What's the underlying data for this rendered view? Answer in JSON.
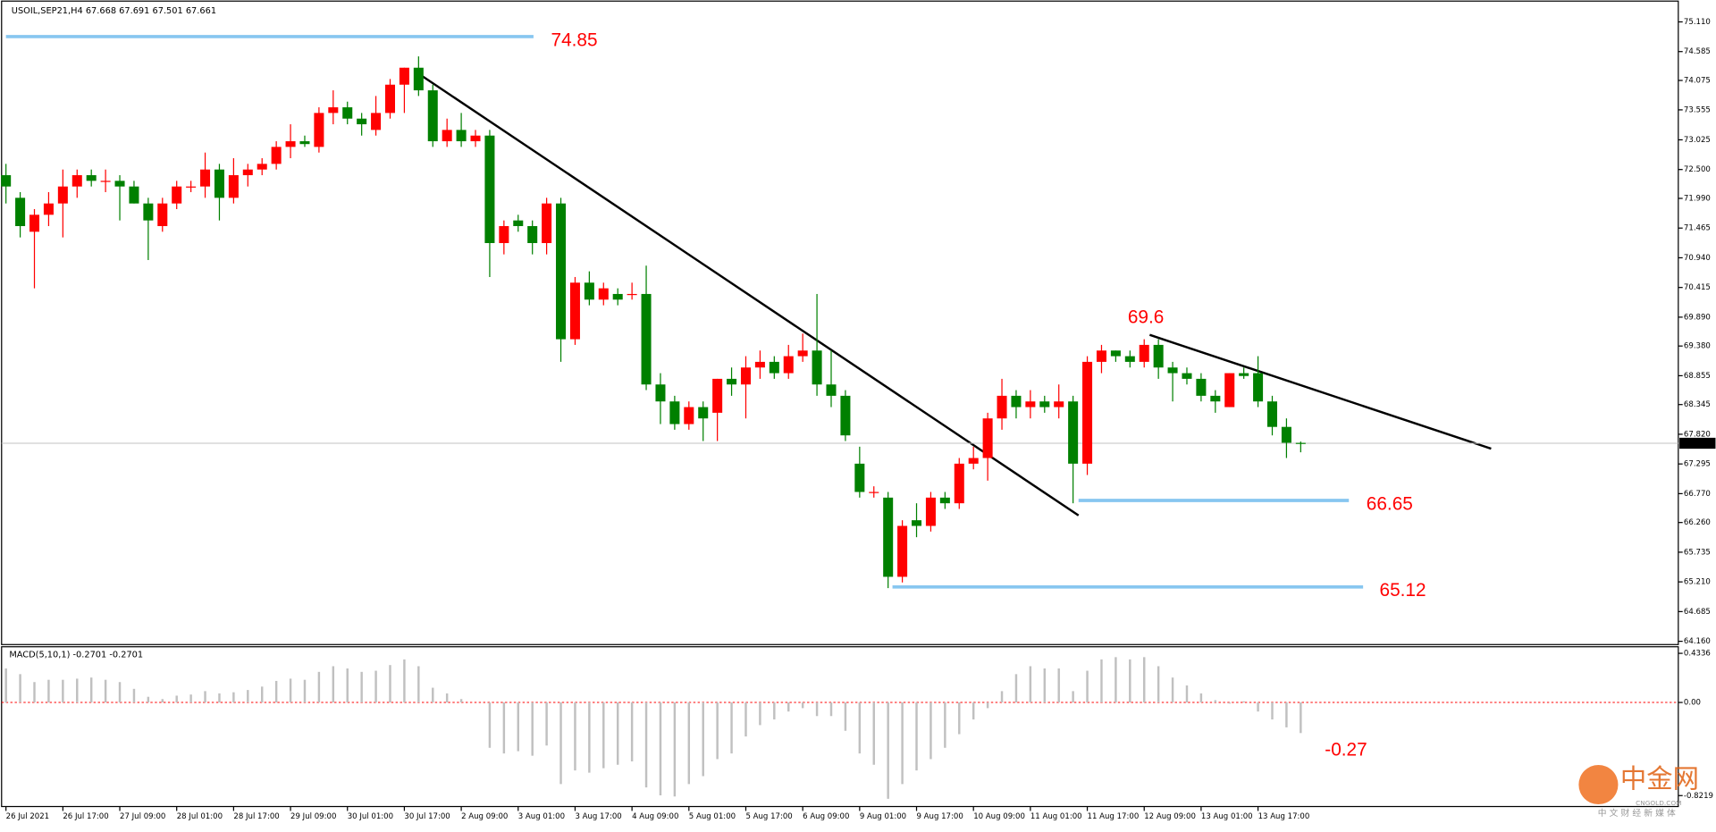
{
  "header": "USOIL,SEP21,H4  67.668 67.691 67.501 67.661",
  "watermark": {
    "brand": "中金网",
    "site": "CNGOLD.COM",
    "slogan": "中 文 财 经 新 媒 体"
  },
  "chart_data": [
    {
      "type": "candlestick",
      "up_color": "#ff0000",
      "down_color": "#008000",
      "categories": [
        "26 Jul 2021",
        null,
        null,
        null,
        "26 Jul 17:00",
        null,
        null,
        null,
        "27 Jul 09:00",
        null,
        null,
        null,
        "28 Jul 01:00",
        null,
        null,
        null,
        "28 Jul 17:00",
        null,
        null,
        null,
        "29 Jul 09:00",
        null,
        null,
        null,
        "30 Jul 01:00",
        null,
        null,
        null,
        "30 Jul 17:00",
        null,
        null,
        null,
        "2 Aug 09:00",
        null,
        null,
        null,
        "3 Aug 01:00",
        null,
        null,
        null,
        "3 Aug 17:00",
        null,
        null,
        null,
        "4 Aug 09:00",
        null,
        null,
        null,
        "5 Aug 01:00",
        null,
        null,
        null,
        "5 Aug 17:00",
        null,
        null,
        null,
        "6 Aug 09:00",
        null,
        null,
        null,
        "9 Aug 01:00",
        null,
        null,
        null,
        "9 Aug 17:00",
        null,
        null,
        null,
        "10 Aug 09:00",
        null,
        null,
        null,
        "11 Aug 01:00",
        null,
        null,
        null,
        "11 Aug 17:00",
        null,
        null,
        null,
        "12 Aug 09:00",
        null,
        null,
        null,
        "13 Aug 01:00",
        null,
        null,
        null,
        "13 Aug 17:00",
        null,
        null,
        null
      ],
      "open": [
        72.4,
        72.0,
        71.4,
        71.7,
        71.9,
        72.2,
        72.4,
        72.3,
        72.3,
        72.2,
        71.9,
        71.5,
        71.9,
        72.2,
        72.2,
        72.5,
        72.0,
        72.4,
        72.5,
        72.6,
        72.9,
        73.0,
        72.9,
        73.5,
        73.6,
        73.4,
        73.2,
        73.5,
        74.0,
        74.3,
        73.9,
        73.0,
        73.2,
        73.0,
        73.1,
        71.2,
        71.6,
        71.5,
        71.2,
        71.9,
        69.5,
        70.5,
        70.2,
        70.3,
        70.3,
        70.3,
        68.7,
        68.4,
        68.0,
        68.3,
        68.2,
        68.8,
        68.7,
        69.0,
        69.1,
        68.9,
        69.2,
        69.3,
        68.7,
        68.5,
        67.3,
        66.8,
        66.7,
        65.3,
        66.3,
        66.2,
        66.7,
        66.6,
        67.3,
        67.4,
        68.1,
        68.5,
        68.3,
        68.4,
        68.3,
        68.4,
        67.3,
        69.1,
        69.3,
        69.2,
        69.1,
        69.4,
        69.0,
        68.9,
        68.8,
        68.5,
        68.3,
        68.9,
        68.9,
        68.4,
        67.95,
        67.668
      ],
      "high": [
        72.6,
        72.1,
        71.8,
        72.1,
        72.5,
        72.5,
        72.5,
        72.5,
        72.4,
        72.3,
        72.0,
        72.0,
        72.3,
        72.3,
        72.8,
        72.6,
        72.7,
        72.6,
        72.7,
        73.0,
        73.3,
        73.1,
        73.6,
        73.9,
        73.7,
        73.5,
        73.8,
        74.1,
        74.3,
        74.5,
        74.0,
        73.4,
        73.5,
        73.2,
        73.2,
        71.6,
        71.7,
        71.6,
        72.0,
        72.0,
        70.6,
        70.7,
        70.5,
        70.4,
        70.5,
        70.8,
        68.9,
        68.5,
        68.4,
        68.4,
        68.8,
        69.0,
        69.2,
        69.3,
        69.2,
        69.4,
        69.6,
        70.3,
        69.3,
        68.6,
        67.6,
        66.9,
        66.8,
        66.3,
        66.6,
        66.8,
        66.8,
        67.4,
        67.6,
        68.2,
        68.8,
        68.6,
        68.6,
        68.5,
        68.7,
        68.5,
        69.2,
        69.4,
        69.3,
        69.3,
        69.5,
        69.5,
        69.1,
        69.0,
        68.9,
        68.6,
        68.9,
        69.0,
        69.2,
        68.5,
        68.1,
        67.691
      ],
      "low": [
        71.9,
        71.3,
        70.4,
        71.5,
        71.3,
        72.0,
        72.2,
        72.1,
        71.6,
        71.9,
        70.9,
        71.4,
        71.8,
        72.1,
        72.0,
        71.6,
        71.9,
        72.2,
        72.4,
        72.5,
        72.7,
        72.9,
        72.8,
        73.3,
        73.3,
        73.1,
        73.1,
        73.4,
        73.5,
        73.8,
        72.9,
        72.9,
        72.9,
        72.9,
        70.6,
        71.0,
        71.4,
        71.0,
        71.0,
        69.1,
        69.4,
        70.1,
        70.1,
        70.1,
        70.2,
        68.6,
        68.0,
        67.9,
        67.9,
        67.7,
        67.7,
        68.5,
        68.1,
        68.8,
        68.8,
        68.8,
        69.1,
        68.5,
        68.3,
        67.7,
        66.7,
        66.7,
        65.1,
        65.2,
        66.0,
        66.1,
        66.5,
        66.5,
        67.2,
        67.0,
        67.9,
        68.1,
        68.1,
        68.2,
        68.1,
        66.6,
        67.1,
        68.9,
        69.1,
        69.0,
        69.0,
        68.8,
        68.4,
        68.7,
        68.4,
        68.2,
        68.3,
        68.8,
        68.3,
        67.8,
        67.4,
        67.501
      ],
      "close": [
        72.2,
        71.5,
        71.7,
        71.9,
        72.2,
        72.4,
        72.3,
        72.3,
        72.2,
        71.9,
        71.6,
        71.9,
        72.2,
        72.2,
        72.5,
        72.0,
        72.4,
        72.5,
        72.6,
        72.9,
        73.0,
        72.95,
        73.5,
        73.6,
        73.4,
        73.3,
        73.5,
        74.0,
        74.3,
        73.9,
        73.0,
        73.2,
        73.0,
        73.1,
        71.2,
        71.5,
        71.5,
        71.2,
        71.9,
        69.5,
        70.5,
        70.2,
        70.4,
        70.2,
        70.3,
        68.7,
        68.4,
        68.0,
        68.3,
        68.1,
        68.8,
        68.7,
        69.0,
        69.1,
        68.9,
        69.2,
        69.3,
        68.7,
        68.5,
        67.8,
        66.8,
        66.8,
        65.3,
        66.2,
        66.2,
        66.7,
        66.6,
        67.3,
        67.4,
        68.1,
        68.5,
        68.3,
        68.4,
        68.3,
        68.4,
        67.3,
        69.1,
        69.3,
        69.2,
        69.1,
        69.4,
        69.0,
        68.9,
        68.8,
        68.5,
        68.4,
        68.9,
        68.85,
        68.4,
        67.95,
        67.67,
        67.661
      ],
      "ylim": [
        64.16,
        75.11
      ],
      "yticks": [
        {
          "value": 75.11,
          "label": "75.110"
        },
        {
          "value": 74.585,
          "label": "74.585"
        },
        {
          "value": 74.075,
          "label": "74.075"
        },
        {
          "value": 73.555,
          "label": "73.555"
        },
        {
          "value": 73.025,
          "label": "73.025"
        },
        {
          "value": 72.5,
          "label": "72.500"
        },
        {
          "value": 71.99,
          "label": "71.990"
        },
        {
          "value": 71.465,
          "label": "71.465"
        },
        {
          "value": 70.94,
          "label": "70.940"
        },
        {
          "value": 70.415,
          "label": "70.415"
        },
        {
          "value": 69.89,
          "label": "69.890"
        },
        {
          "value": 69.38,
          "label": "69.380"
        },
        {
          "value": 68.855,
          "label": "68.855"
        },
        {
          "value": 68.345,
          "label": "68.345"
        },
        {
          "value": 67.82,
          "label": "67.820"
        },
        {
          "value": 67.295,
          "label": "67.295"
        },
        {
          "value": 66.77,
          "label": "66.770"
        },
        {
          "value": 66.26,
          "label": "66.260"
        },
        {
          "value": 65.735,
          "label": "65.735"
        },
        {
          "value": 65.21,
          "label": "65.210"
        },
        {
          "value": 64.685,
          "label": "64.685"
        },
        {
          "value": 64.16,
          "label": "64.160"
        }
      ],
      "last_price": 67.661,
      "level_color": "#87c6f0",
      "levels": [
        {
          "value": 74.85,
          "label": "74.85"
        },
        {
          "value": 66.65,
          "label": "66.65"
        },
        {
          "value": 65.12,
          "label": "65.12"
        }
      ],
      "annotations": [
        {
          "value": 69.6,
          "label": "69.6"
        }
      ]
    },
    {
      "type": "bar",
      "title": "MACD(5,10,1) -0.2701 -0.2701",
      "color": "#c0c0c0",
      "values": [
        0.3,
        0.25,
        0.18,
        0.2,
        0.2,
        0.21,
        0.22,
        0.2,
        0.18,
        0.12,
        0.05,
        0.03,
        0.06,
        0.07,
        0.1,
        0.08,
        0.09,
        0.11,
        0.14,
        0.19,
        0.21,
        0.2,
        0.27,
        0.32,
        0.3,
        0.27,
        0.28,
        0.33,
        0.38,
        0.32,
        0.13,
        0.08,
        0.03,
        0.0,
        -0.4,
        -0.45,
        -0.43,
        -0.47,
        -0.38,
        -0.72,
        -0.6,
        -0.62,
        -0.58,
        -0.55,
        -0.52,
        -0.75,
        -0.82,
        -0.83,
        -0.72,
        -0.65,
        -0.5,
        -0.45,
        -0.3,
        -0.2,
        -0.15,
        -0.08,
        -0.05,
        -0.12,
        -0.12,
        -0.25,
        -0.45,
        -0.55,
        -0.85,
        -0.72,
        -0.6,
        -0.5,
        -0.4,
        -0.28,
        -0.15,
        -0.05,
        0.1,
        0.25,
        0.32,
        0.3,
        0.3,
        0.1,
        0.28,
        0.38,
        0.4,
        0.38,
        0.4,
        0.32,
        0.22,
        0.15,
        0.08,
        0.02,
        -0.01,
        0.01,
        -0.08,
        -0.15,
        -0.22,
        -0.27
      ],
      "ylim": [
        -0.8219,
        0.4336
      ],
      "yticks": [
        0.4336,
        {
          "value": 0,
          "label": "0.00"
        },
        -0.8219
      ],
      "annotations": [
        {
          "value": -0.27,
          "label": "-0.27"
        }
      ]
    }
  ]
}
